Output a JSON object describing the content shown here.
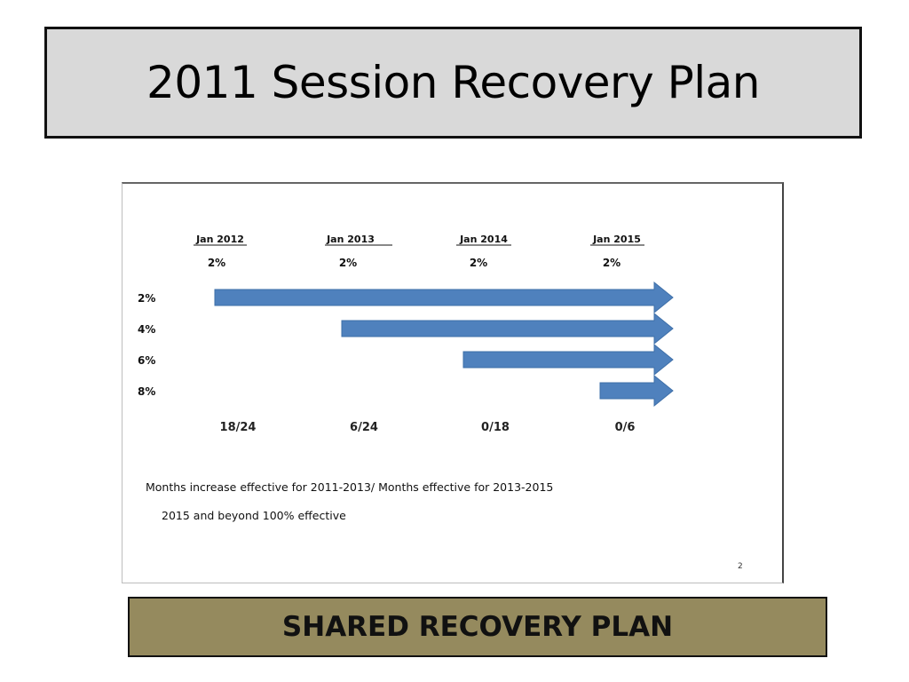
{
  "slide": {
    "title": "2011 Session Recovery Plan",
    "footer": "SHARED RECOVERY PLAN"
  },
  "diagram": {
    "columns": [
      {
        "date": "Jan 2012",
        "rate": "2%",
        "months": "18/24"
      },
      {
        "date": "Jan 2013",
        "rate": "2%",
        "months": "6/24"
      },
      {
        "date": "Jan 2014",
        "rate": "2%",
        "months": "0/18"
      },
      {
        "date": "Jan 2015",
        "rate": "2%",
        "months": "0/6"
      }
    ],
    "rows": [
      {
        "label": "2%",
        "start_year": "Jan 2012"
      },
      {
        "label": "4%",
        "start_year": "Jan 2013"
      },
      {
        "label": "6%",
        "start_year": "Jan 2014"
      },
      {
        "label": "8%",
        "start_year": "Jan 2015"
      }
    ],
    "arrow_color": "#4f81bd",
    "note_line1": "Months increase effective for  2011-2013/ Months effective for 2013-2015",
    "note_line2": "2015 and beyond 100% effective",
    "page_number": "2"
  }
}
